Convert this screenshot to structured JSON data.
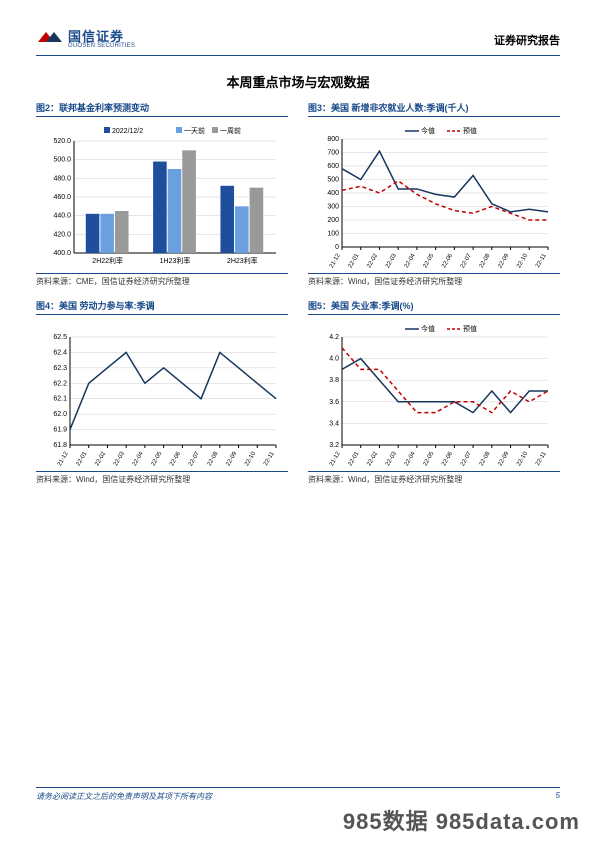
{
  "header": {
    "logo_cn": "国信证券",
    "logo_en": "GUOSEN SECURITIES",
    "report_type": "证券研究报告"
  },
  "main_title": "本周重点市场与宏观数据",
  "footer": {
    "disclaimer": "请务必阅读正文之后的免责声明及其项下所有内容",
    "page": "5"
  },
  "watermark": "985数据 985data.com",
  "charts": {
    "c2": {
      "title": "图2：联邦基金利率预测变动",
      "source": "资料来源：CME，国信证券经济研究所整理",
      "type": "bar",
      "legend": [
        "2022/12/2",
        "一天前",
        "一周前"
      ],
      "legend_colors": [
        "#1f4e9c",
        "#6aa0e0",
        "#999999"
      ],
      "categories": [
        "2H22利率",
        "1H23利率",
        "2H23利率"
      ],
      "series": [
        [
          442,
          498,
          472
        ],
        [
          442,
          490,
          450
        ],
        [
          445,
          510,
          470
        ]
      ],
      "ylim": [
        400,
        520
      ],
      "ytick_step": 20,
      "grid_color": "#cccccc",
      "background_color": "#ffffff",
      "axis_color": "#000000",
      "label_fontsize": 7,
      "bar_group_gap": 0.35
    },
    "c3": {
      "title": "图3：美国 新增非农就业人数:季调(千人)",
      "source": "资料来源：Wind，国信证券经济研究所整理",
      "type": "line",
      "legend": [
        "今值",
        "预值"
      ],
      "legend_colors": [
        "#17365d",
        "#c00000"
      ],
      "line_styles": [
        "solid",
        "dashed"
      ],
      "x_labels": [
        "21-12",
        "22-01",
        "22-02",
        "22-03",
        "22-04",
        "22-05",
        "22-06",
        "22-07",
        "22-08",
        "22-09",
        "22-10",
        "22-11"
      ],
      "series": [
        [
          580,
          500,
          710,
          430,
          430,
          390,
          370,
          530,
          320,
          260,
          280,
          260
        ],
        [
          420,
          450,
          400,
          490,
          390,
          320,
          270,
          250,
          300,
          250,
          200,
          200
        ]
      ],
      "ylim": [
        0,
        800
      ],
      "ytick_step": 100,
      "grid_color": "#cccccc",
      "background_color": "#ffffff",
      "axis_color": "#000000",
      "label_fontsize": 7,
      "line_width": 1.5
    },
    "c4": {
      "title": "图4：美国 劳动力参与率:季调",
      "source": "资料来源：Wind，国信证券经济研究所整理",
      "type": "line",
      "legend": [],
      "legend_colors": [
        "#17365d"
      ],
      "line_styles": [
        "solid"
      ],
      "x_labels": [
        "21-12",
        "22-01",
        "22-02",
        "22-03",
        "22-04",
        "22-05",
        "22-06",
        "22-07",
        "22-08",
        "22-09",
        "22-10",
        "22-11"
      ],
      "series": [
        [
          61.9,
          62.2,
          62.3,
          62.4,
          62.2,
          62.3,
          62.2,
          62.1,
          62.4,
          62.3,
          62.2,
          62.1
        ]
      ],
      "ylim": [
        61.8,
        62.5
      ],
      "ytick_step": 0.1,
      "grid_color": "#cccccc",
      "background_color": "#ffffff",
      "axis_color": "#000000",
      "label_fontsize": 7,
      "line_width": 1.5
    },
    "c5": {
      "title": "图5：美国 失业率:季调(%)",
      "source": "资料来源：Wind，国信证券经济研究所整理",
      "type": "line",
      "legend": [
        "今值",
        "预值"
      ],
      "legend_colors": [
        "#17365d",
        "#c00000"
      ],
      "line_styles": [
        "solid",
        "dashed"
      ],
      "x_labels": [
        "21-12",
        "22-01",
        "22-02",
        "22-03",
        "22-04",
        "22-05",
        "22-06",
        "22-07",
        "22-08",
        "22-09",
        "22-10",
        "22-11"
      ],
      "series": [
        [
          3.9,
          4.0,
          3.8,
          3.6,
          3.6,
          3.6,
          3.6,
          3.5,
          3.7,
          3.5,
          3.7,
          3.7
        ],
        [
          4.1,
          3.9,
          3.9,
          3.7,
          3.5,
          3.5,
          3.6,
          3.6,
          3.5,
          3.7,
          3.6,
          3.7
        ]
      ],
      "ylim": [
        3.2,
        4.2
      ],
      "ytick_step": 0.2,
      "grid_color": "#cccccc",
      "background_color": "#ffffff",
      "axis_color": "#000000",
      "label_fontsize": 7,
      "line_width": 1.5
    }
  }
}
